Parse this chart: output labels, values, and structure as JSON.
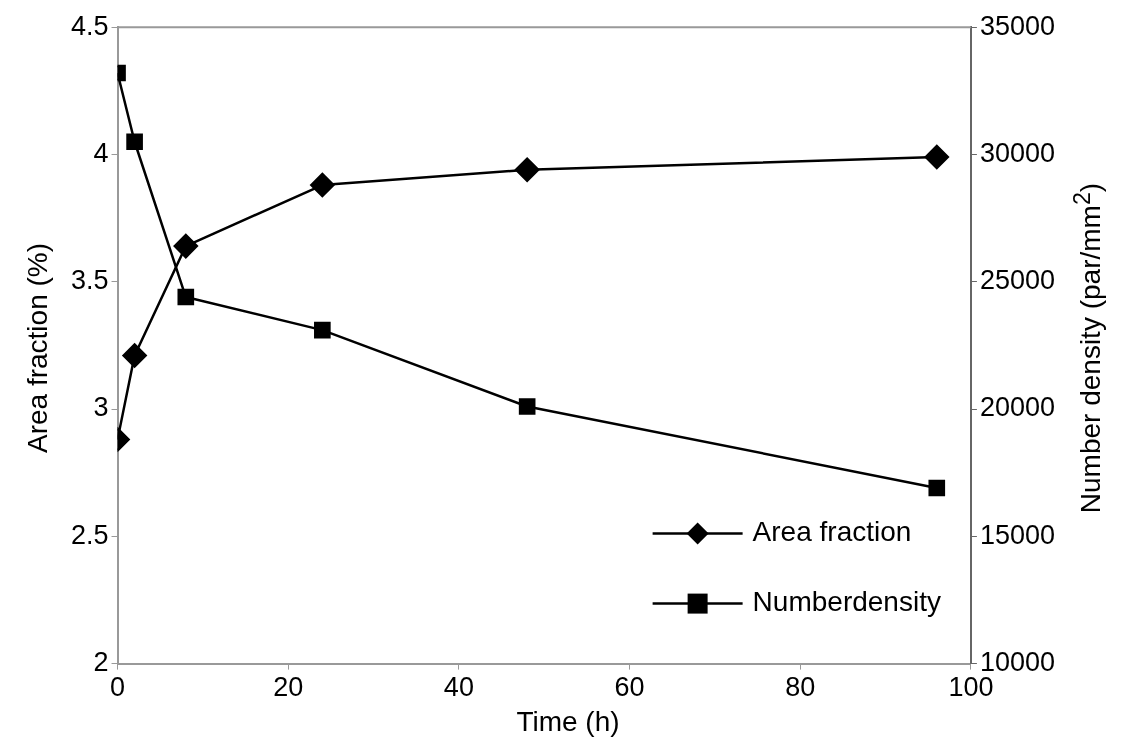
{
  "chart_data": {
    "type": "line",
    "xlabel": "Time (h)",
    "ylabel": "Area fraction (%)",
    "y2label": "Number density (par/mm$^{2}$)",
    "x": [
      0,
      2,
      8,
      24,
      48,
      96
    ],
    "series": [
      {
        "name": "Area fraction",
        "color": "#000000",
        "marker": "diamond",
        "values": [
          2.88,
          3.21,
          3.64,
          3.88,
          3.94,
          3.99
        ]
      },
      {
        "name": "Numberdensity",
        "color": "#000000",
        "marker": "square",
        "axis": "y2",
        "values": [
          33200,
          30500,
          24400,
          23100,
          20100,
          16900
        ]
      }
    ],
    "xlim": [
      0,
      100
    ],
    "xticks": [
      0,
      20,
      40,
      60,
      80,
      100
    ],
    "ylim": [
      2,
      4.5
    ],
    "yticks": [
      2,
      2.5,
      3,
      3.5,
      4,
      4.5
    ],
    "y2lim": [
      10000,
      35000
    ],
    "y2ticks": [
      10000,
      15000,
      20000,
      25000,
      30000,
      35000
    ],
    "legend": "bottom right",
    "line_style": "solid"
  }
}
